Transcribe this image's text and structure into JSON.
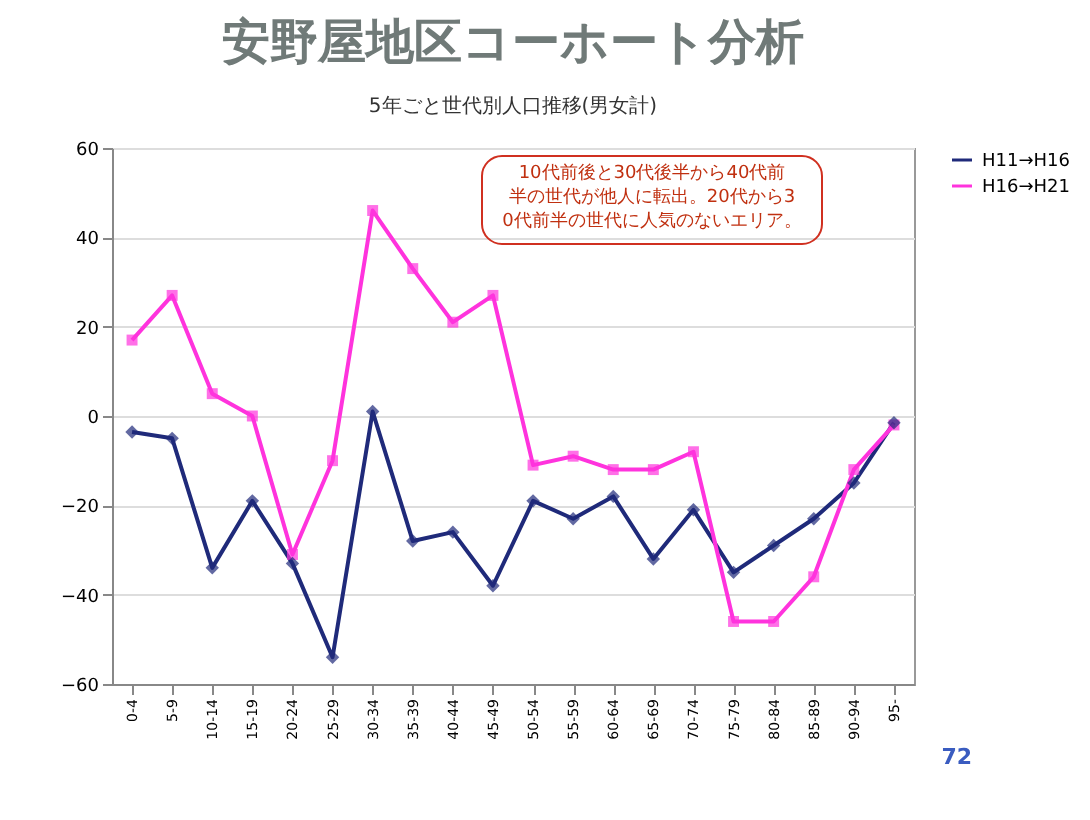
{
  "chart_data": {
    "type": "line",
    "title": "安野屋地区コーホート分析",
    "subtitle": "5年ごと世代別人口推移(男女計)",
    "categories": [
      "0-4",
      "5-9",
      "10-14",
      "15-19",
      "20-24",
      "25-29",
      "30-34",
      "35-39",
      "40-44",
      "45-49",
      "50-54",
      "55-59",
      "60-64",
      "65-69",
      "70-74",
      "75-79",
      "80-84",
      "85-89",
      "90-94",
      "95-"
    ],
    "series": [
      {
        "name": "H11→H16",
        "color": "#1f2a7a",
        "marker": "diamond",
        "values": [
          -3.6,
          -5,
          -34,
          -19,
          -33,
          -54,
          1,
          -28,
          -26,
          -38,
          -19,
          -23,
          -18,
          -32,
          -21,
          -35,
          -29,
          -23,
          -15,
          -1.5
        ]
      },
      {
        "name": "H16→H21",
        "color": "#ff33dd",
        "marker": "square",
        "values": [
          17,
          27,
          5,
          0,
          -31,
          -10,
          46,
          33,
          21,
          27,
          -11,
          -9,
          -12,
          -12,
          -8,
          -46,
          -46,
          -36,
          -12,
          -2
        ]
      }
    ],
    "ylim": [
      -60,
      60
    ],
    "yticks": [
      -60,
      -40,
      -20,
      0,
      20,
      40,
      60
    ],
    "grid": "y",
    "legend": "right",
    "annotations": [
      "10代前後と30代後半から40代前半の世代が他人に転出。20代から30代前半の世代に人気のないエリア。",
      "72"
    ]
  }
}
